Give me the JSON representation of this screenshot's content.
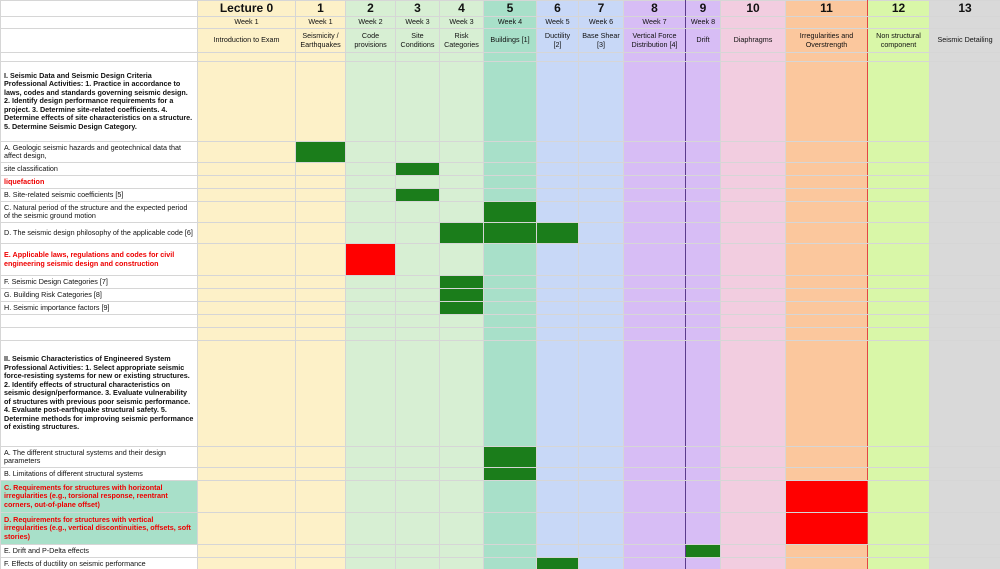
{
  "sheet": {
    "columns": [
      {
        "id": "lbl",
        "num": "",
        "week": "",
        "topic": "",
        "bg": "#ffffff"
      },
      {
        "id": "l0",
        "num": "Lecture 0",
        "week": "Week 1",
        "topic": "Introduction to Exam",
        "bg": "#fdf1c8"
      },
      {
        "id": "l1",
        "num": "1",
        "week": "Week 1",
        "topic": "Seismicity / Earthquakes",
        "bg": "#fdf1c8"
      },
      {
        "id": "l2",
        "num": "2",
        "week": "Week 2",
        "topic": "Code provisions",
        "bg": "#d7efd3"
      },
      {
        "id": "l3",
        "num": "3",
        "week": "Week 3",
        "topic": "Site Conditions",
        "bg": "#d7efd3"
      },
      {
        "id": "l4",
        "num": "4",
        "week": "Week 3",
        "topic": "Risk Categories",
        "bg": "#d7efd3"
      },
      {
        "id": "l5",
        "num": "5",
        "week": "Week 4",
        "topic": "Buildings [1]",
        "bg": "#a8e0c9"
      },
      {
        "id": "l6",
        "num": "6",
        "week": "Week 5",
        "topic": "Ductility [2]",
        "bg": "#c8d8f7"
      },
      {
        "id": "l7",
        "num": "7",
        "week": "Week 6",
        "topic": "Base Shear [3]",
        "bg": "#c8d8f7"
      },
      {
        "id": "l8",
        "num": "8",
        "week": "Week 7",
        "topic": "Vertical Force Distribution [4]",
        "bg": "#d7bdf5"
      },
      {
        "id": "l9",
        "num": "9",
        "week": "Week 8",
        "topic": "Drift",
        "bg": "#d7bdf5"
      },
      {
        "id": "l10",
        "num": "10",
        "week": "",
        "topic": "Diaphragms",
        "bg": "#f2cde0"
      },
      {
        "id": "l11",
        "num": "11",
        "week": "",
        "topic": "Irregularities and Overstrength",
        "bg": "#fbc79d"
      },
      {
        "id": "l12",
        "num": "12",
        "week": "",
        "topic": "Non structural component",
        "bg": "#d9f7a8"
      },
      {
        "id": "l13",
        "num": "13",
        "week": "",
        "topic": "Seismic Detailing",
        "bg": "#d9d9d9"
      }
    ],
    "rows": [
      {
        "label": "",
        "style": "",
        "marks": []
      },
      {
        "label": "I. Seismic Data and Seismic Design Criteria Professional Activities: 1. Practice in accordance to laws, codes and standards governing seismic design. 2. Identify design performance requirements for a project. 3. Determine site-related coefficients. 4. Determine effects of site characteristics on a structure. 5. Determine Seismic Design Category.",
        "style": "bold",
        "marks": []
      },
      {
        "label": "A. Geologic seismic hazards and geotechnical data that affect design,",
        "style": "",
        "marks": [
          2
        ]
      },
      {
        "label": "site classification",
        "style": "",
        "marks": [
          4
        ]
      },
      {
        "label": "liquefaction",
        "style": "red",
        "marks": []
      },
      {
        "label": "B. Site-related seismic coefficients [5]",
        "style": "",
        "marks": [
          4
        ]
      },
      {
        "label": "C. Natural period of the structure and the expected period of the seismic ground motion",
        "style": "",
        "marks": [
          6
        ]
      },
      {
        "label": "D. The seismic design philosophy of the applicable code [6]",
        "style": "",
        "marks": [
          5,
          6,
          7
        ]
      },
      {
        "label": "E. Applicable laws, regulations and codes for civil engineering seismic design and construction",
        "style": "red",
        "marks": [],
        "redMarks": [
          3
        ]
      },
      {
        "label": "F. Seismic Design Categories [7]",
        "style": "",
        "marks": [
          5
        ]
      },
      {
        "label": "G. Building Risk Categories [8]",
        "style": "",
        "marks": [
          5
        ]
      },
      {
        "label": "H. Seismic importance factors [9]",
        "style": "",
        "marks": [
          5
        ]
      },
      {
        "label": "",
        "style": "",
        "marks": []
      },
      {
        "label": "",
        "style": "",
        "marks": []
      },
      {
        "label": "II. Seismic Characteristics of Engineered System Professional Activities: 1. Select appropriate seismic force-resisting systems for new or existing structures. 2. Identify effects of structural characteristics on seismic design/performance. 3. Evaluate vulnerability of structures with previous poor seismic performance. 4. Evaluate post-earthquake structural safety. 5. Determine methods for improving seismic performance of existing structures.",
        "style": "bold",
        "marks": []
      },
      {
        "label": "A. The different structural systems and their design parameters",
        "style": "",
        "marks": [
          6
        ]
      },
      {
        "label": "B. Limitations of different structural systems",
        "style": "",
        "marks": [
          6
        ]
      },
      {
        "label": "C. Requirements for structures with horizontal irregularities (e.g., torsional response, reentrant corners, out-of-plane offset)",
        "style": "red teal",
        "marks": [],
        "redMarks": [
          12
        ]
      },
      {
        "label": "D. Requirements for structures with vertical irregularities (e.g., vertical discontinuities, offsets, soft stories)",
        "style": "red teal",
        "marks": [],
        "redMarks": [
          12
        ]
      },
      {
        "label": "E. Drift and P-Delta effects",
        "style": "",
        "marks": [
          10
        ]
      },
      {
        "label": "F. Effects of ductility on seismic performance",
        "style": "",
        "marks": [
          7
        ]
      }
    ]
  }
}
